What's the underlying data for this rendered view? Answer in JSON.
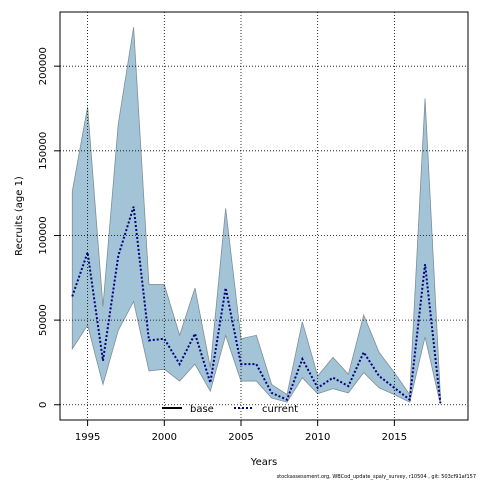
{
  "chart_data": {
    "type": "area",
    "xlabel": "Years",
    "ylabel": "Recruits (age 1)",
    "xlim": [
      1993.2,
      2019.8
    ],
    "ylim": [
      -9000,
      232000
    ],
    "x_ticks": [
      1995,
      2000,
      2005,
      2010,
      2015
    ],
    "x_tick_labels": [
      "1995",
      "2000",
      "2005",
      "2010",
      "2015"
    ],
    "y_ticks": [
      0,
      50000,
      100000,
      150000,
      200000
    ],
    "y_tick_labels": [
      "0",
      "50000",
      "100000",
      "150000",
      "200000"
    ],
    "grid": true,
    "legend_position": "bottom",
    "years": [
      1994,
      1995,
      1996,
      1997,
      1998,
      1999,
      2000,
      2001,
      2002,
      2003,
      2004,
      2005,
      2006,
      2007,
      2008,
      2009,
      2010,
      2011,
      2012,
      2013,
      2014,
      2015,
      2016,
      2017,
      2018
    ],
    "series": [
      {
        "name": "base",
        "style": "solid",
        "color": "#000000",
        "values": []
      },
      {
        "name": "current",
        "style": "dotted",
        "color": "#000080",
        "values": [
          64000,
          90000,
          26000,
          88000,
          117000,
          38000,
          39000,
          24000,
          42000,
          13000,
          69000,
          24000,
          24000,
          7000,
          3000,
          27000,
          10000,
          16000,
          11000,
          31000,
          17000,
          10000,
          3000,
          83000,
          1000
        ]
      }
    ],
    "band": {
      "color": "#a2c4d6",
      "edge_color": "#7d8f99",
      "lower": [
        33000,
        47000,
        12000,
        44000,
        61000,
        20000,
        21000,
        14000,
        24000,
        8000,
        41000,
        14000,
        14000,
        4000,
        1500,
        16000,
        6500,
        9500,
        7000,
        19000,
        10000,
        6000,
        1500,
        40000,
        300
      ],
      "upper": [
        126000,
        176000,
        58000,
        166000,
        223000,
        71000,
        71000,
        41000,
        69000,
        22000,
        116000,
        39000,
        41000,
        12000,
        6000,
        49000,
        17000,
        28000,
        18000,
        53000,
        31000,
        19000,
        6000,
        181000,
        5000
      ]
    }
  },
  "footer": "stockassessment.org, WBCod_update_spaly_survey, r10504 , git: 503cf91af157"
}
